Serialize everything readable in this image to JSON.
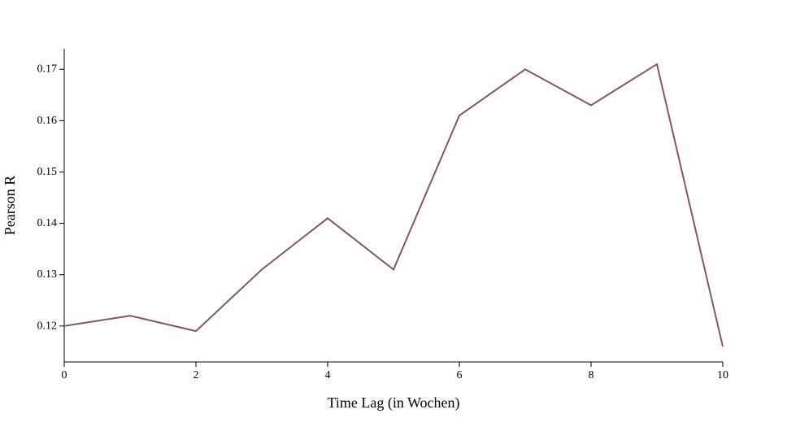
{
  "chart_data": {
    "type": "line",
    "title": "",
    "xlabel": "Time Lag (in Wochen)",
    "ylabel": "Pearson R",
    "x": [
      0,
      1,
      2,
      3,
      4,
      5,
      6,
      7,
      8,
      9,
      10
    ],
    "series": [
      {
        "values": [
          0.12,
          0.122,
          0.119,
          0.131,
          0.141,
          0.131,
          0.161,
          0.17,
          0.163,
          0.171,
          0.116
        ],
        "color": "#7d5870"
      }
    ],
    "xlim": [
      0,
      10
    ],
    "ylim": [
      0.113,
      0.174
    ],
    "x_ticks": [
      0,
      2,
      4,
      6,
      8,
      10
    ],
    "x_tick_labels": [
      "0",
      "2",
      "4",
      "6",
      "8",
      "10"
    ],
    "y_ticks": [
      0.12,
      0.13,
      0.14,
      0.15,
      0.16,
      0.17
    ],
    "y_tick_labels": [
      "0.12",
      "0.13",
      "0.14",
      "0.15",
      "0.16",
      "0.17"
    ],
    "grid": false,
    "legend": "none"
  }
}
